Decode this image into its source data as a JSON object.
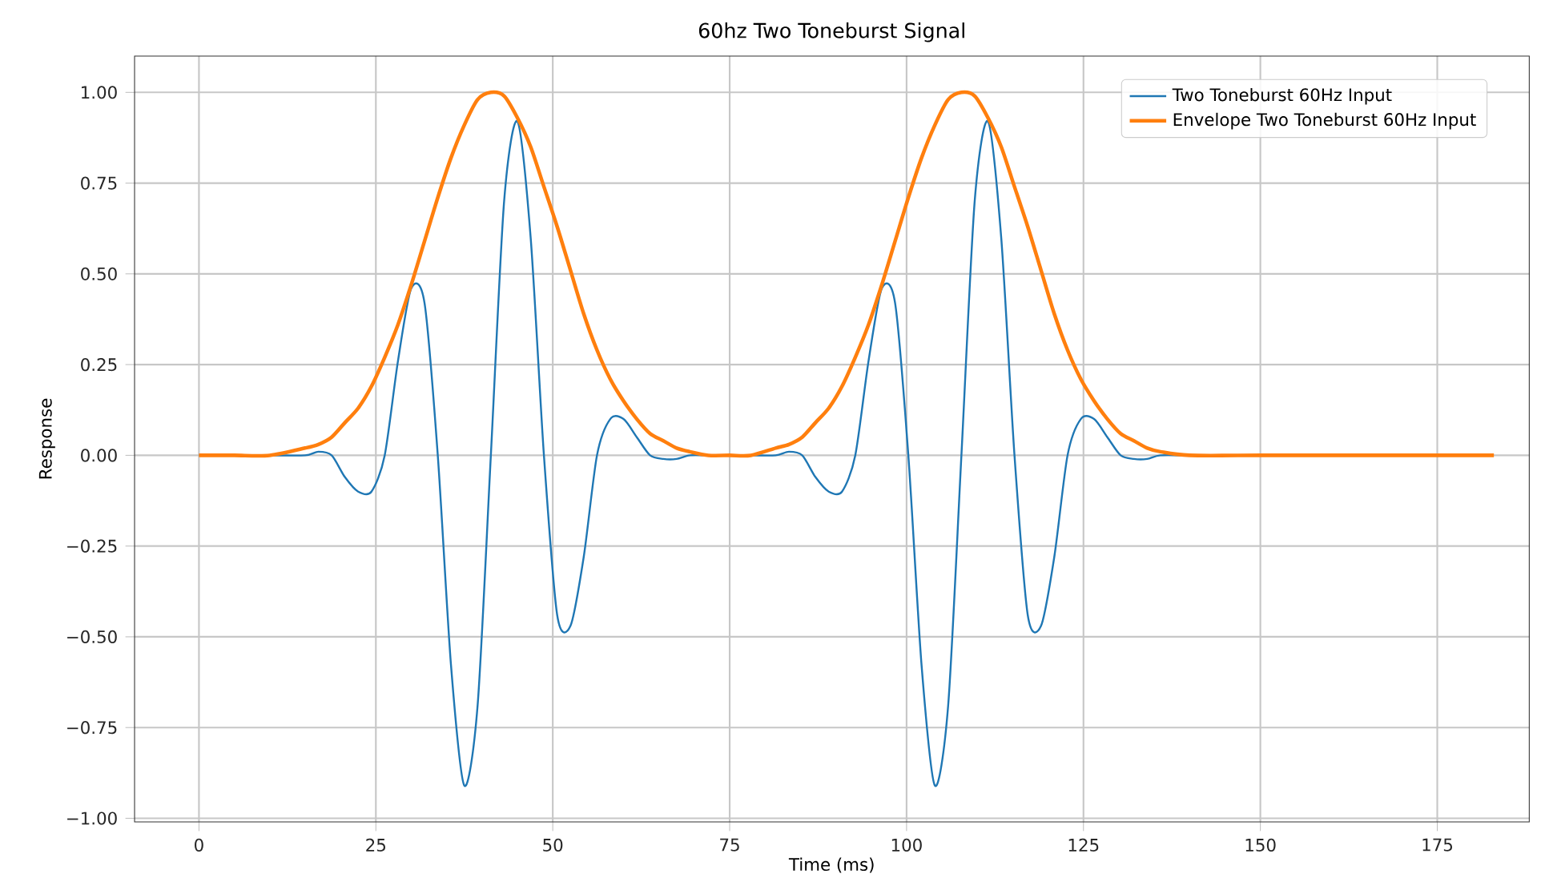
{
  "chart_data": {
    "type": "line",
    "title": "60hz Two Toneburst Signal",
    "xlabel": "Time (ms)",
    "ylabel": "Response",
    "x": [
      0,
      5,
      10,
      15,
      16.875,
      18.75,
      20.625,
      22.5,
      24.375,
      26.25,
      28.125,
      30,
      31.875,
      33.75,
      35.625,
      37.5,
      39.375,
      41.25,
      43.125,
      45,
      46.875,
      48.75,
      50.625,
      52.5,
      54.375,
      56.25,
      58.125,
      60,
      61.875,
      63.75,
      65.625,
      67.5,
      69.375,
      72,
      75,
      78,
      81.5,
      83.375,
      85.25,
      87.125,
      89,
      90.875,
      92.75,
      94.625,
      96.5,
      98.375,
      100.25,
      102.125,
      104,
      105.875,
      107.75,
      109.625,
      111.5,
      113.375,
      115.25,
      117.125,
      119,
      120.875,
      122.75,
      124.625,
      126.5,
      128.375,
      130.25,
      132.125,
      134,
      135.875,
      140,
      150,
      160,
      170,
      183
    ],
    "series": [
      {
        "name": "Two Toneburst 60Hz Input",
        "color": "#1f77b4",
        "values": [
          0,
          0,
          0,
          0.0,
          0.01,
          0.0,
          -0.06,
          -0.1,
          -0.1,
          0.0,
          0.26,
          0.46,
          0.42,
          0.0,
          -0.58,
          -0.91,
          -0.69,
          0.0,
          0.7,
          0.92,
          0.6,
          0.0,
          -0.44,
          -0.47,
          -0.28,
          0.0,
          0.1,
          0.1,
          0.05,
          0.0,
          -0.01,
          -0.01,
          0.0,
          0,
          0,
          0,
          0.0,
          0.01,
          0.0,
          -0.06,
          -0.1,
          -0.1,
          0.0,
          0.26,
          0.46,
          0.42,
          0.0,
          -0.58,
          -0.91,
          -0.69,
          0.0,
          0.7,
          0.92,
          0.6,
          0.0,
          -0.44,
          -0.47,
          -0.28,
          0.0,
          0.1,
          0.1,
          0.05,
          0.0,
          -0.01,
          -0.01,
          0.0,
          0,
          0,
          null,
          null,
          null
        ]
      },
      {
        "name": "Envelope Two Toneburst 60Hz Input",
        "color": "#ff7f0e",
        "values": [
          0,
          0,
          0,
          0.02,
          0.03,
          0.05,
          0.09,
          0.13,
          0.19,
          0.27,
          0.36,
          0.47,
          0.59,
          0.71,
          0.82,
          0.91,
          0.98,
          1.0,
          0.99,
          0.93,
          0.85,
          0.74,
          0.63,
          0.51,
          0.39,
          0.29,
          0.21,
          0.15,
          0.1,
          0.06,
          0.04,
          0.02,
          0.01,
          0,
          0,
          0,
          0.02,
          0.03,
          0.05,
          0.09,
          0.13,
          0.19,
          0.27,
          0.36,
          0.47,
          0.59,
          0.71,
          0.82,
          0.91,
          0.98,
          1.0,
          0.99,
          0.93,
          0.85,
          0.74,
          0.63,
          0.51,
          0.39,
          0.29,
          0.21,
          0.15,
          0.1,
          0.06,
          0.04,
          0.02,
          0.01,
          0,
          0,
          0,
          0,
          0
        ]
      }
    ],
    "xlim": [
      -9.1,
      188
    ],
    "ylim": [
      -1.01,
      1.1
    ],
    "xticks": [
      0,
      25,
      50,
      75,
      100,
      125,
      150,
      175
    ],
    "yticks": [
      {
        "value": -1,
        "label": "−1.00"
      },
      {
        "value": -0.75,
        "label": "−0.75"
      },
      {
        "value": -0.5,
        "label": "−0.50"
      },
      {
        "value": -0.25,
        "label": "−0.25"
      },
      {
        "value": 0,
        "label": "0.00"
      },
      {
        "value": 0.25,
        "label": "0.25"
      },
      {
        "value": 0.5,
        "label": "0.50"
      },
      {
        "value": 0.75,
        "label": "0.75"
      },
      {
        "value": 1,
        "label": "1.00"
      }
    ],
    "grid": true,
    "legend": "top right"
  }
}
